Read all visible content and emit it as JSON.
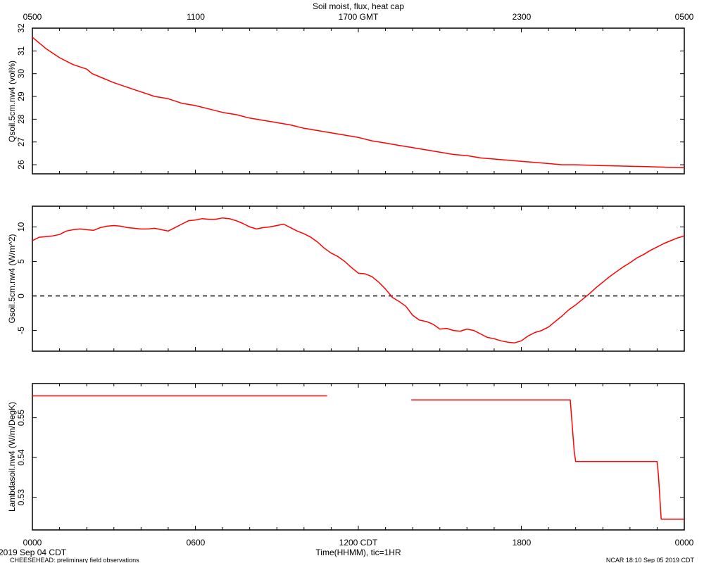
{
  "figure": {
    "title": "Soil moist, flux, heat cap",
    "top_axis_ticks": [
      "0500",
      "1100",
      "1700 GMT",
      "2300",
      "0500"
    ],
    "bottom_axis_ticks": [
      "0000",
      "0600",
      "1200 CDT",
      "1800",
      "0000"
    ],
    "xlabel": "Time(HHMM), tic=1HR",
    "date_label": "2019 Sep 04 CDT",
    "footer_left": "CHEESEHEAD: preliminary field observations",
    "footer_right": "NCAR 18:10 Sep 05 2019 CDT",
    "line_color": "#ff0000"
  },
  "chart_data": [
    {
      "type": "line",
      "ylabel": "Qsoil.5cm.nw4 (vol%)",
      "ylim": [
        25.6,
        32
      ],
      "yticks": [
        26,
        27,
        28,
        29,
        30,
        31,
        32
      ],
      "xlim": [
        0,
        24
      ],
      "series": [
        {
          "x": [
            0,
            0.5,
            1,
            1.5,
            2,
            2.2,
            2.5,
            3,
            3.5,
            4,
            4.5,
            5,
            5.5,
            6,
            6.5,
            7,
            7.5,
            8,
            8.5,
            9,
            9.5,
            10,
            10.5,
            11,
            11.5,
            12,
            12.5,
            13,
            13.5,
            14,
            14.5,
            15,
            15.5,
            16,
            16.5,
            17,
            17.5,
            18,
            18.5,
            19,
            19.5,
            20,
            20.5,
            21,
            21.5,
            22,
            22.5,
            23,
            23.5,
            24
          ],
          "y": [
            31.6,
            31.1,
            30.7,
            30.4,
            30.2,
            30.0,
            29.85,
            29.6,
            29.4,
            29.2,
            29.0,
            28.9,
            28.7,
            28.6,
            28.45,
            28.3,
            28.2,
            28.05,
            27.95,
            27.85,
            27.75,
            27.6,
            27.5,
            27.4,
            27.3,
            27.2,
            27.05,
            26.95,
            26.85,
            26.75,
            26.65,
            26.55,
            26.45,
            26.4,
            26.3,
            26.25,
            26.2,
            26.15,
            26.1,
            26.05,
            26.0,
            26.0,
            25.98,
            25.96,
            25.95,
            25.93,
            25.92,
            25.9,
            25.88,
            25.87
          ]
        }
      ]
    },
    {
      "type": "line",
      "ylabel": "Gsoil.5cm.nw4 (W/m^2)",
      "ylim": [
        -8,
        13
      ],
      "yticks": [
        -5,
        0,
        5,
        10
      ],
      "xlim": [
        0,
        24
      ],
      "reference_line": 0,
      "series": [
        {
          "x": [
            0,
            0.25,
            0.5,
            0.75,
            1,
            1.25,
            1.5,
            1.75,
            2,
            2.25,
            2.5,
            2.75,
            3,
            3.25,
            3.5,
            3.75,
            4,
            4.25,
            4.5,
            4.75,
            5,
            5.25,
            5.5,
            5.75,
            6,
            6.25,
            6.5,
            6.75,
            7,
            7.25,
            7.5,
            7.75,
            8,
            8.25,
            8.5,
            8.75,
            9,
            9.25,
            9.5,
            9.75,
            10,
            10.25,
            10.5,
            10.75,
            11,
            11.25,
            11.5,
            11.75,
            12,
            12.25,
            12.5,
            12.75,
            13,
            13.25,
            13.5,
            13.75,
            14,
            14.25,
            14.5,
            14.75,
            15,
            15.25,
            15.5,
            15.75,
            16,
            16.25,
            16.5,
            16.75,
            17,
            17.25,
            17.5,
            17.75,
            18,
            18.25,
            18.5,
            18.75,
            19,
            19.25,
            19.5,
            19.75,
            20,
            20.25,
            20.5,
            20.75,
            21,
            21.25,
            21.5,
            21.75,
            22,
            22.25,
            22.5,
            22.75,
            23,
            23.25,
            23.5,
            23.75,
            24
          ],
          "y": [
            8.0,
            8.5,
            8.6,
            8.7,
            8.9,
            9.4,
            9.6,
            9.7,
            9.6,
            9.5,
            9.9,
            10.1,
            10.2,
            10.1,
            9.9,
            9.8,
            9.7,
            9.7,
            9.8,
            9.6,
            9.4,
            9.9,
            10.4,
            10.9,
            11.0,
            11.2,
            11.1,
            11.1,
            11.3,
            11.2,
            10.9,
            10.5,
            10.0,
            9.7,
            9.9,
            10.0,
            10.2,
            10.4,
            9.9,
            9.4,
            9.0,
            8.5,
            7.8,
            6.9,
            6.2,
            5.7,
            5.0,
            4.1,
            3.3,
            3.2,
            2.8,
            2.0,
            1.0,
            -0.2,
            -0.8,
            -1.5,
            -2.8,
            -3.5,
            -3.7,
            -4.1,
            -4.8,
            -4.7,
            -5.0,
            -5.1,
            -4.8,
            -5.0,
            -5.5,
            -6.0,
            -6.2,
            -6.5,
            -6.7,
            -6.8,
            -6.5,
            -5.8,
            -5.3,
            -5.0,
            -4.5,
            -3.7,
            -2.9,
            -2.0,
            -1.3,
            -0.5,
            0.3,
            1.2,
            2.0,
            2.8,
            3.5,
            4.2,
            4.8,
            5.5,
            6.0,
            6.6,
            7.1,
            7.6,
            8.0,
            8.4,
            8.7
          ]
        }
      ]
    },
    {
      "type": "line",
      "ylabel": "Lambdasoil.nw4 (W/m/DegK)",
      "ylim": [
        0.5218,
        0.5586
      ],
      "yticks": [
        0.53,
        0.54,
        0.55
      ],
      "xlim": [
        0,
        24
      ],
      "series": [
        {
          "x": [
            0,
            10.85
          ],
          "y": [
            0.5555,
            0.5555
          ]
        },
        {
          "x": [
            13.95,
            19.8,
            19.95,
            20.0,
            23.0,
            23.05,
            23.15,
            24
          ],
          "y": [
            0.5545,
            0.5545,
            0.5415,
            0.539,
            0.539,
            0.5355,
            0.5245,
            0.5245
          ]
        }
      ]
    }
  ]
}
